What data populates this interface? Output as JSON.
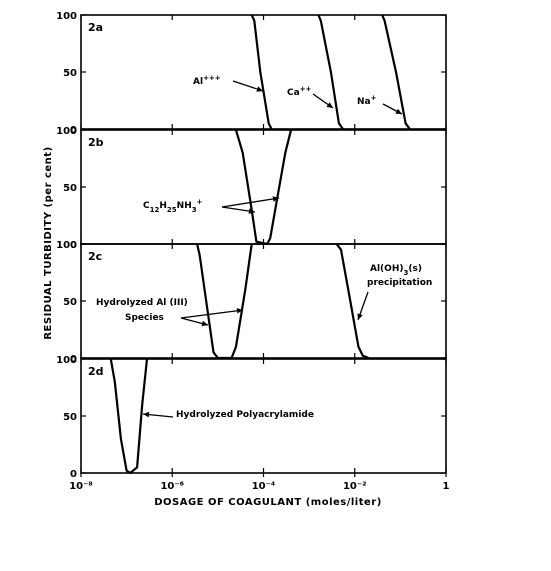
{
  "chart_data": {
    "type": "line",
    "xlabel": "DOSAGE OF COAGULANT (moles/liter)",
    "ylabel": "RESIDUAL TURBIDITY (per cent)",
    "x_scale": "log",
    "x_tick_labels": [
      "10⁻⁸",
      "10⁻⁶",
      "10⁻⁴",
      "10⁻²",
      "1"
    ],
    "x_tick_values": [
      1e-08,
      1e-06,
      0.0001,
      0.01,
      1
    ],
    "xlim": [
      1e-08,
      1
    ],
    "ylim": [
      0,
      100
    ],
    "y_tick_labels": [
      "0",
      "50",
      "100"
    ],
    "grid": false,
    "panels": [
      {
        "label": "2a",
        "series": [
          {
            "name": "Al⁺⁺⁺",
            "x": [
              5.5e-05,
              6.3e-05,
              8.5e-05,
              0.00013,
              0.00015
            ],
            "y": [
              100,
              95,
              50,
              5,
              0
            ]
          },
          {
            "name": "Ca⁺⁺",
            "x": [
              0.0016,
              0.0018,
              0.003,
              0.0045,
              0.0055
            ],
            "y": [
              100,
              95,
              50,
              5,
              0
            ]
          },
          {
            "name": "Na⁺",
            "x": [
              0.04,
              0.045,
              0.08,
              0.13,
              0.16
            ],
            "y": [
              100,
              95,
              50,
              5,
              0
            ]
          }
        ],
        "annotations": [
          {
            "text": "Al",
            "sup": "+++",
            "target": "Al⁺⁺⁺"
          },
          {
            "text": "Ca",
            "sup": "++",
            "target": "Ca⁺⁺"
          },
          {
            "text": "Na",
            "sup": "+",
            "target": "Na⁺"
          }
        ]
      },
      {
        "label": "2b",
        "series": [
          {
            "name": "C₁₂H₂₅NH₃⁺",
            "x": [
              2.5e-05,
              3.5e-05,
              5.5e-05,
              7e-05,
              0.00012,
              0.00014,
              0.0002,
              0.0003,
              0.0004
            ],
            "y": [
              100,
              80,
              30,
              2,
              0,
              5,
              40,
              80,
              100
            ]
          }
        ],
        "annotations": [
          {
            "text": "C",
            "parts": [
              [
                "C",
                ""
              ],
              [
                "12",
                "sub"
              ],
              [
                "H",
                ""
              ],
              [
                "25",
                "sub"
              ],
              [
                "NH",
                ""
              ],
              [
                "3",
                "sub"
              ],
              [
                "+",
                "sup"
              ]
            ]
          }
        ]
      },
      {
        "label": "2c",
        "series": [
          {
            "name": "Hydrolyzed Al(III) Species",
            "x": [
              3.5e-06,
              4e-06,
              6e-06,
              8e-06,
              1e-05,
              2e-05,
              2.5e-05,
              4e-05,
              5.5e-05
            ],
            "y": [
              100,
              90,
              40,
              5,
              0,
              0,
              10,
              60,
              100
            ]
          },
          {
            "name": "Al(OH)₃(s) precipitation",
            "x": [
              0.004,
              0.005,
              0.008,
              0.012,
              0.015,
              0.02
            ],
            "y": [
              100,
              95,
              50,
              10,
              2,
              0
            ]
          }
        ],
        "annotations": [
          {
            "text": "Hydrolyzed Al (III)",
            "line2": "Species"
          },
          {
            "text": "Al(OH)",
            "sub": "3",
            "suffix": "(s)",
            "line2": "precipitation"
          }
        ]
      },
      {
        "label": "2d",
        "series": [
          {
            "name": "Hydrolyzed Polyacrylamide",
            "x": [
              4.5e-08,
              5.5e-08,
              7.5e-08,
              1e-07,
              1.2e-07,
              1.7e-07,
              2.2e-07,
              2.8e-07
            ],
            "y": [
              100,
              80,
              30,
              2,
              0,
              5,
              60,
              100
            ]
          }
        ],
        "annotations": [
          {
            "text": "Hydrolyzed  Polyacrylamide"
          }
        ]
      }
    ]
  }
}
